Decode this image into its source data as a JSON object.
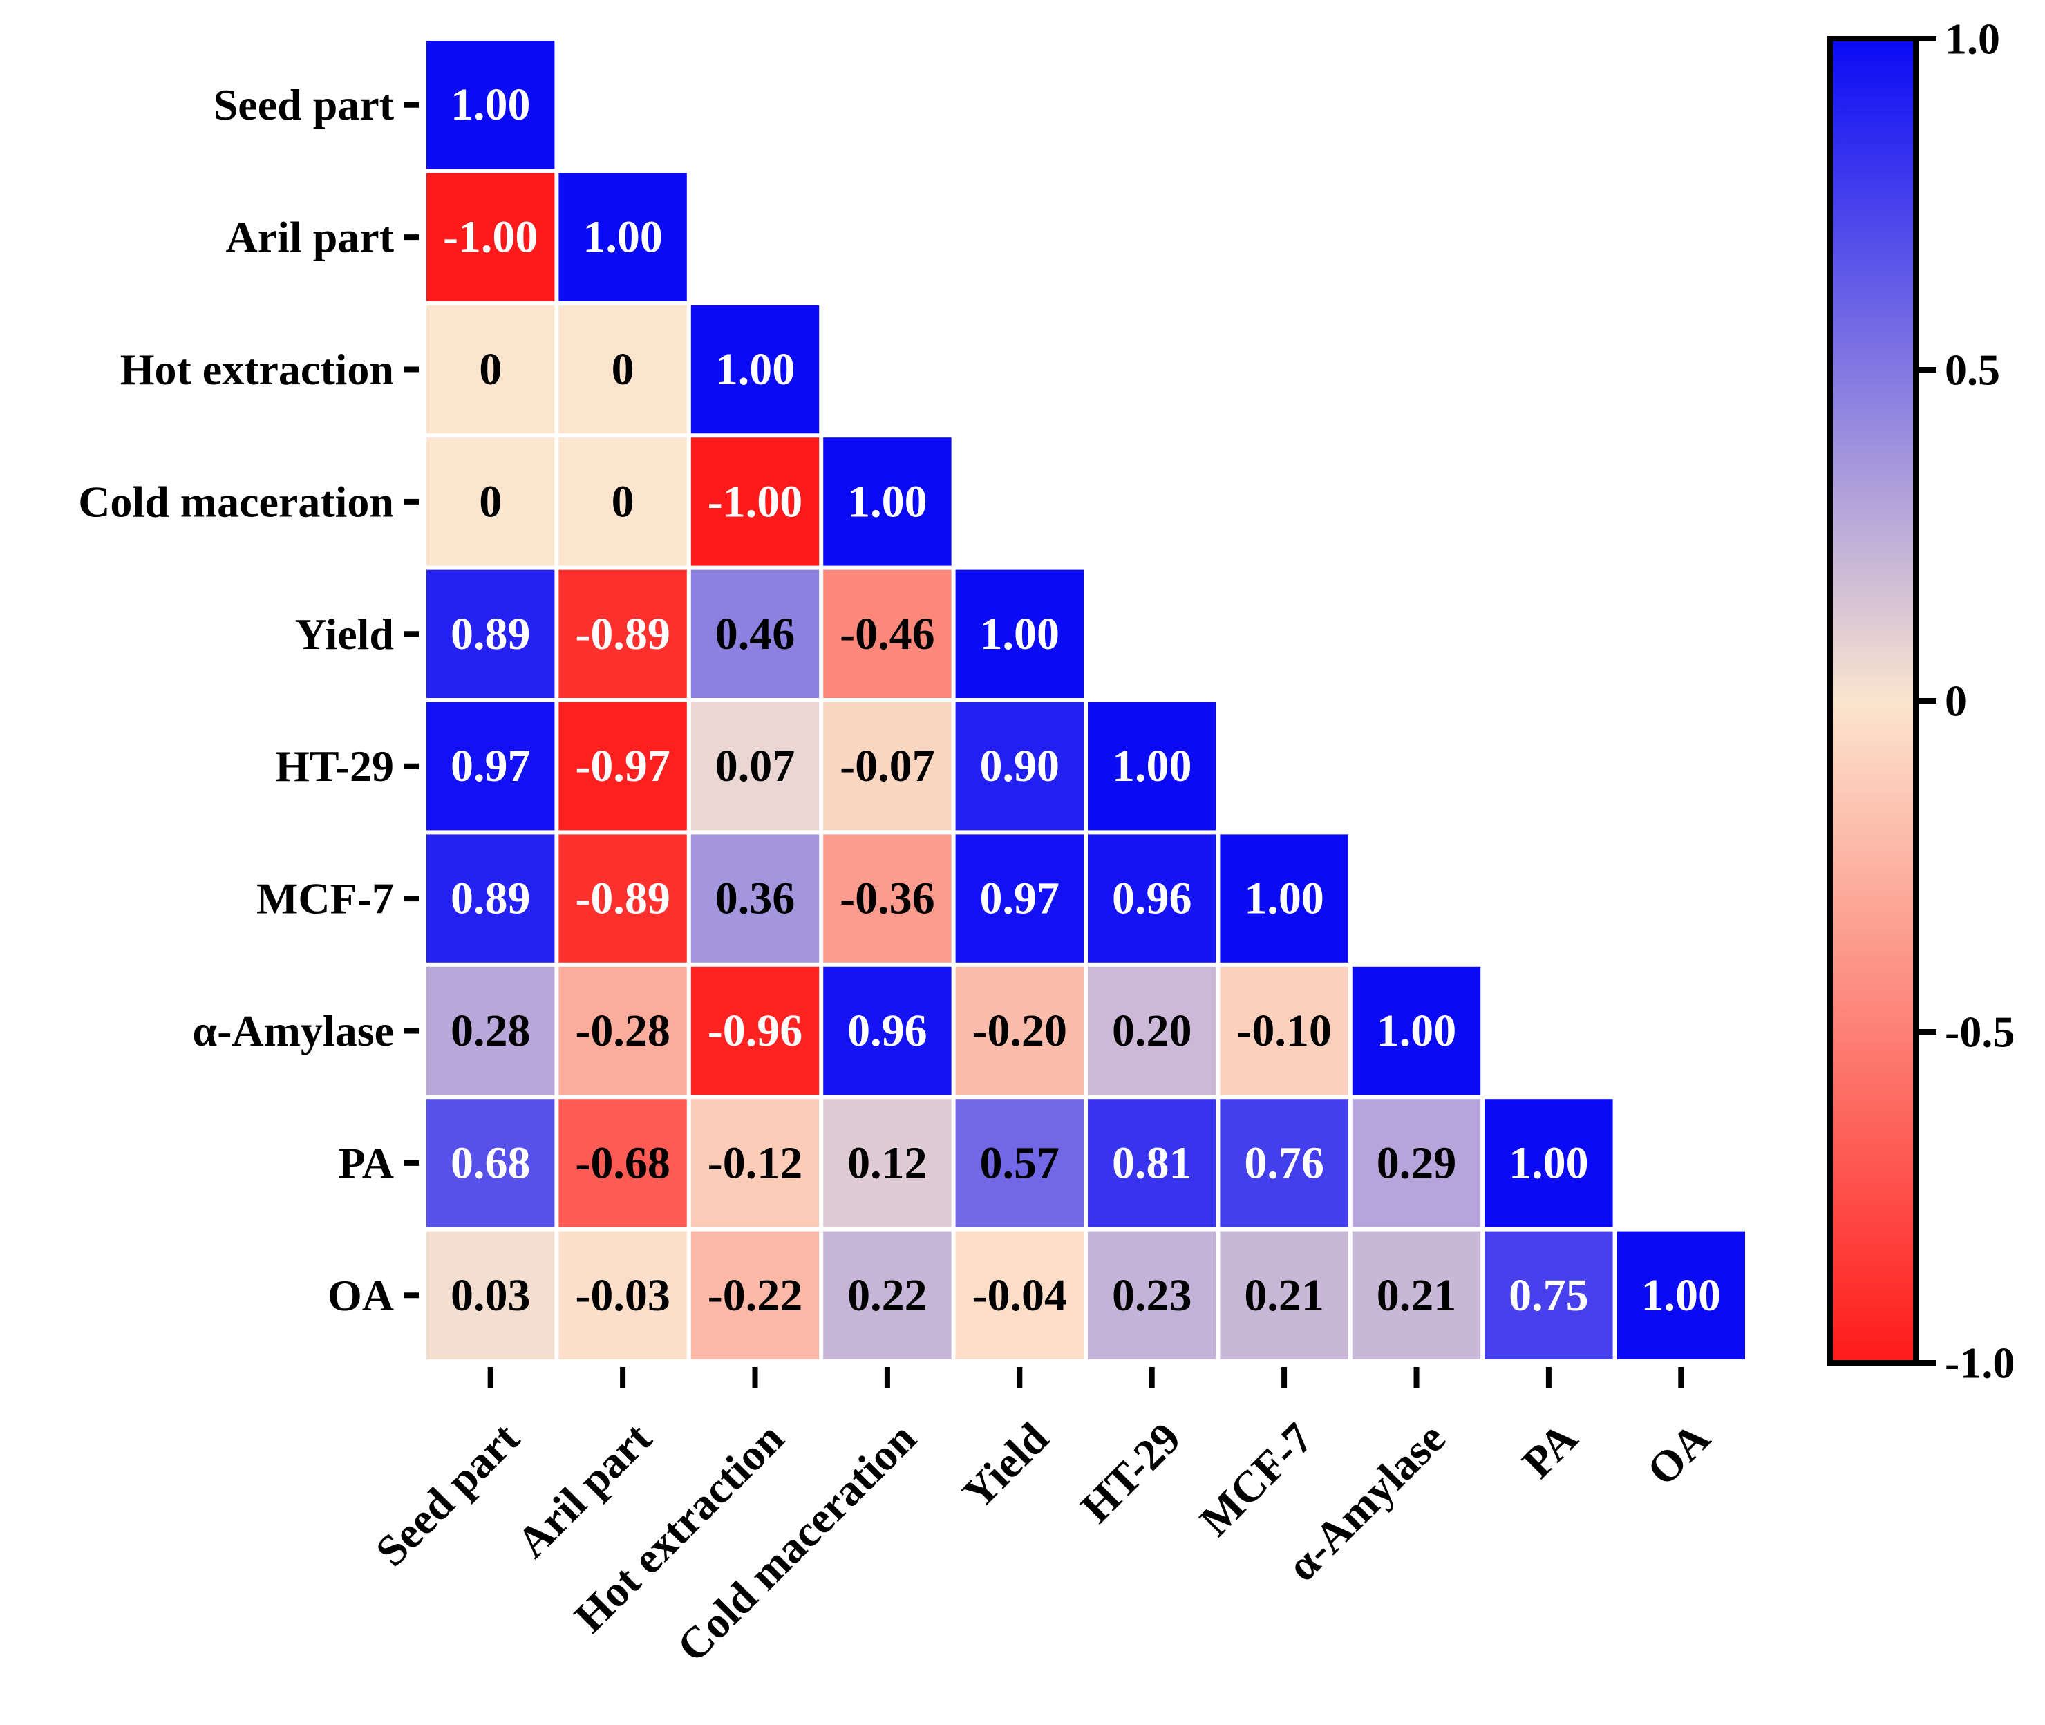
{
  "chart_data": {
    "type": "heatmap",
    "subtype": "lower-triangular correlation matrix",
    "labels": [
      "Seed part",
      "Aril part",
      "Hot extraction",
      "Cold maceration",
      "Yield",
      "HT-29",
      "MCF-7",
      "α-Amylase",
      "PA",
      "OA"
    ],
    "matrix": [
      [
        1.0
      ],
      [
        -1.0,
        1.0
      ],
      [
        0,
        0,
        1.0
      ],
      [
        0,
        0,
        -1.0,
        1.0
      ],
      [
        0.89,
        -0.89,
        0.46,
        -0.46,
        1.0
      ],
      [
        0.97,
        -0.97,
        0.07,
        -0.07,
        0.9,
        1.0
      ],
      [
        0.89,
        -0.89,
        0.36,
        -0.36,
        0.97,
        0.96,
        1.0
      ],
      [
        0.28,
        -0.28,
        -0.96,
        0.96,
        -0.2,
        0.2,
        -0.1,
        1.0
      ],
      [
        0.68,
        -0.68,
        -0.12,
        0.12,
        0.57,
        0.81,
        0.76,
        0.29,
        1.0
      ],
      [
        0.03,
        -0.03,
        -0.22,
        0.22,
        -0.04,
        0.23,
        0.21,
        0.21,
        0.75,
        1.0
      ]
    ],
    "cell_labels": [
      [
        "1.00"
      ],
      [
        "-1.00",
        "1.00"
      ],
      [
        "0",
        "0",
        "1.00"
      ],
      [
        "0",
        "0",
        "-1.00",
        "1.00"
      ],
      [
        "0.89",
        "-0.89",
        "0.46",
        "-0.46",
        "1.00"
      ],
      [
        "0.97",
        "-0.97",
        "0.07",
        "-0.07",
        "0.90",
        "1.00"
      ],
      [
        "0.89",
        "-0.89",
        "0.36",
        "-0.36",
        "0.97",
        "0.96",
        "1.00"
      ],
      [
        "0.28",
        "-0.28",
        "-0.96",
        "0.96",
        "-0.20",
        "0.20",
        "-0.10",
        "1.00"
      ],
      [
        "0.68",
        "-0.68",
        "-0.12",
        "0.12",
        "0.57",
        "0.81",
        "0.76",
        "0.29",
        "1.00"
      ],
      [
        "0.03",
        "-0.03",
        "-0.22",
        "0.22",
        "-0.04",
        "0.23",
        "0.21",
        "0.21",
        "0.75",
        "1.00"
      ]
    ],
    "colorbar": {
      "range": [
        -1.0,
        1.0
      ],
      "ticks": [
        1.0,
        0.5,
        0,
        -0.5,
        -1.0
      ],
      "tick_labels": [
        "1.0",
        "0.5",
        "0",
        "-0.5",
        "-1.0"
      ],
      "colors": {
        "neg": "#fe1a1a",
        "mid": "#fbe5cf",
        "pos": "#0a0af5"
      }
    },
    "title": "",
    "xlabel": "",
    "ylabel": ""
  }
}
